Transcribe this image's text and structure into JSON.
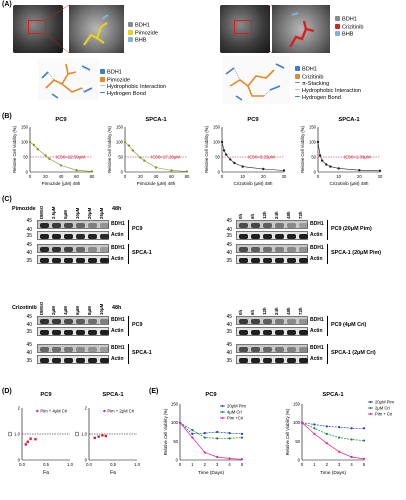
{
  "panels": {
    "a": "(A)",
    "b": "(B)",
    "c": "(C)",
    "d": "(D)",
    "e": "(E)"
  },
  "panel_a": {
    "left_legend": [
      "BDH1",
      "Pimozide",
      "BHB"
    ],
    "left_legend_colors": [
      "#8a8a8a",
      "#e6d21e",
      "#7fb2d8"
    ],
    "right_legend": [
      "BDH1",
      "Crizitinib",
      "BHB"
    ],
    "right_legend_colors": [
      "#8a8a8a",
      "#d92020",
      "#7fb2d8"
    ],
    "left_interaction_legend": [
      "BDH1",
      "Pimozide",
      "Hydrophobic Interaction",
      "Hydrogen Bond"
    ],
    "right_interaction_legend": [
      "BDH1",
      "Crizitinib",
      "π-Stacking",
      "Hydrophobic Interaction",
      "Hydrogen Bond"
    ]
  },
  "panel_b": {
    "ylabel": "Relative Cell Viability (%)",
    "yticks": [
      "150",
      "100",
      "50",
      "0"
    ],
    "charts": [
      {
        "title": "PC9",
        "ic50": "IC50=22.59μM",
        "xlabel": "Pimozide (μM) 48h",
        "xticks": [
          "0",
          "20",
          "40",
          "60",
          "80"
        ]
      },
      {
        "title": "SPCA-1",
        "ic50": "IC50=17.26μM",
        "xlabel": "Pimozide (μM) 48h",
        "xticks": [
          "0",
          "20",
          "40",
          "60",
          "80"
        ]
      },
      {
        "title": "PC9",
        "ic50": "IC50=3.25μM",
        "xlabel": "Crizotinib (μM) 48h",
        "xticks": [
          "0",
          "10",
          "20",
          "30"
        ]
      },
      {
        "title": "SPCA-1",
        "ic50": "IC50=1.39μM",
        "xlabel": "Crizotinib (μM) 48h",
        "xticks": [
          "0",
          "10",
          "20",
          "30"
        ]
      }
    ]
  },
  "panel_c": {
    "pimozide_label": "Pimozide",
    "pimozide_lanes": [
      "DMSO",
      "2.5μM",
      "5μM",
      "10μM",
      "20μM",
      "25μM"
    ],
    "crizotinib_label": "Crizotinib",
    "crizotinib_lanes": [
      "DMSO",
      "2μM",
      "4μM",
      "6μM",
      "8μM",
      "10μM"
    ],
    "time_lanes": [
      "0h",
      "6h",
      "12h",
      "24h",
      "48h",
      "72h"
    ],
    "hours_label": "48h",
    "mw_markers": [
      "45",
      "40",
      "35",
      "45",
      "40",
      "35",
      "30",
      "25",
      "45",
      "40",
      "35"
    ],
    "bdh1": "BDH1",
    "actin": "Actin",
    "pc9": "PC9",
    "spca1": "SPCA-1",
    "pc9_pim": "PC9 (20μM Pim)",
    "spca1_pim": "SPCA-1 (20μM Pim)",
    "pc9_cri": "PC9 (4μM Cri)",
    "spca1_cri": "SPCA-1 (2μM Cri)"
  },
  "panel_d": {
    "charts": [
      {
        "title": "PC9",
        "legend": "Pim + 4μM Cri",
        "xlabel": "Fa",
        "ylabel": "CI",
        "xticks": [
          "0.0",
          "0.5",
          "1.0"
        ],
        "yticks": [
          "2",
          "1.0",
          "0"
        ]
      },
      {
        "title": "SPCA-1",
        "legend": "Pim + 2μM Cri",
        "xlabel": "Fa",
        "ylabel": "CI",
        "xticks": [
          "0.0",
          "0.5",
          "1.0"
        ],
        "yticks": [
          "2",
          "1.0",
          "0"
        ]
      }
    ]
  },
  "panel_e": {
    "ylabel": "Relative Cell Viability (%)",
    "xlabel": "Time (Days)",
    "charts": [
      {
        "title": "PC9",
        "legend": [
          "20μM Pim",
          "4μM Cri",
          "Pim +Cri"
        ],
        "xticks": [
          "0",
          "1",
          "2",
          "3",
          "4",
          "5"
        ],
        "yticks": [
          "150",
          "100",
          "50",
          "0"
        ]
      },
      {
        "title": "SPCA-1",
        "legend": [
          "20μM Pim",
          "2μM Cri",
          "Pim + Cri"
        ],
        "xticks": [
          "0",
          "1",
          "2",
          "3",
          "4",
          "5"
        ],
        "yticks": [
          "150",
          "100",
          "50",
          "0"
        ]
      }
    ]
  },
  "colors": {
    "pim": "#1f3fc4",
    "cri": "#17863a",
    "combo": "#e6208c",
    "dose_pim": "#7a9a1e",
    "dose_cri": "#222222",
    "ic50_line": "#c8102e"
  },
  "chart_data": [
    {
      "type": "scatter",
      "title": "PC9",
      "xlabel": "Pimozide (μM) 48h",
      "ylabel": "Relative Cell Viability (%)",
      "xlim": [
        0,
        80
      ],
      "ylim": [
        0,
        150
      ],
      "x": [
        0,
        5,
        10,
        20,
        25,
        40,
        60,
        80
      ],
      "values": [
        100,
        90,
        76,
        55,
        44,
        22,
        6,
        2
      ]
    },
    {
      "type": "scatter",
      "title": "SPCA-1",
      "xlabel": "Pimozide (μM) 48h",
      "ylabel": "Relative Cell Viability (%)",
      "xlim": [
        0,
        80
      ],
      "ylim": [
        0,
        150
      ],
      "x": [
        0,
        5,
        10,
        20,
        25,
        40,
        60,
        80
      ],
      "values": [
        100,
        88,
        72,
        48,
        38,
        15,
        5,
        2
      ]
    },
    {
      "type": "scatter",
      "title": "PC9",
      "xlabel": "Crizotinib (μM) 48h",
      "ylabel": "Relative Cell Viability (%)",
      "xlim": [
        0,
        30
      ],
      "ylim": [
        0,
        150
      ],
      "x": [
        0,
        1,
        2,
        4,
        6,
        10,
        20,
        30
      ],
      "values": [
        100,
        72,
        58,
        42,
        30,
        18,
        10,
        5
      ]
    },
    {
      "type": "scatter",
      "title": "SPCA-1",
      "xlabel": "Crizotinib (μM) 48h",
      "ylabel": "Relative Cell Viability (%)",
      "xlim": [
        0,
        30
      ],
      "ylim": [
        0,
        150
      ],
      "x": [
        0,
        1,
        2,
        4,
        6,
        10,
        20,
        30
      ],
      "values": [
        100,
        55,
        38,
        25,
        18,
        12,
        6,
        4
      ]
    },
    {
      "type": "scatter",
      "title": "PC9",
      "xlabel": "Fa",
      "ylabel": "CI",
      "xlim": [
        0,
        1
      ],
      "ylim": [
        0,
        2
      ],
      "x": [
        0.08,
        0.12,
        0.18,
        0.28
      ],
      "values": [
        0.6,
        0.7,
        0.82,
        0.8
      ],
      "series": [
        {
          "name": "Pim + 4μM Cri"
        }
      ]
    },
    {
      "type": "scatter",
      "title": "SPCA-1",
      "xlabel": "Fa",
      "ylabel": "CI",
      "xlim": [
        0,
        1
      ],
      "ylim": [
        0,
        2
      ],
      "x": [
        0.12,
        0.2,
        0.28,
        0.35
      ],
      "values": [
        0.85,
        0.9,
        0.95,
        0.92
      ],
      "series": [
        {
          "name": "Pim + 2μM Cri"
        }
      ]
    },
    {
      "type": "line",
      "title": "PC9",
      "xlabel": "Time (Days)",
      "ylabel": "Relative Cell Viability (%)",
      "x": [
        0,
        1,
        2,
        3,
        4,
        5
      ],
      "ylim": [
        0,
        150
      ],
      "series": [
        {
          "name": "20μM Pim",
          "values": [
            100,
            70,
            72,
            75,
            72,
            70
          ]
        },
        {
          "name": "4μM Cri",
          "values": [
            100,
            80,
            60,
            58,
            58,
            60
          ]
        },
        {
          "name": "Pim +Cri",
          "values": [
            100,
            60,
            20,
            8,
            4,
            2
          ]
        }
      ]
    },
    {
      "type": "line",
      "title": "SPCA-1",
      "xlabel": "Time (Days)",
      "ylabel": "Relative Cell Viability (%)",
      "x": [
        0,
        1,
        2,
        3,
        4,
        5
      ],
      "ylim": [
        0,
        150
      ],
      "series": [
        {
          "name": "20μM Pim",
          "values": [
            100,
            95,
            90,
            88,
            85,
            85
          ]
        },
        {
          "name": "2μM Cri",
          "values": [
            100,
            85,
            70,
            60,
            55,
            52
          ]
        },
        {
          "name": "Pim + Cri",
          "values": [
            100,
            70,
            45,
            22,
            8,
            3
          ]
        }
      ]
    }
  ]
}
